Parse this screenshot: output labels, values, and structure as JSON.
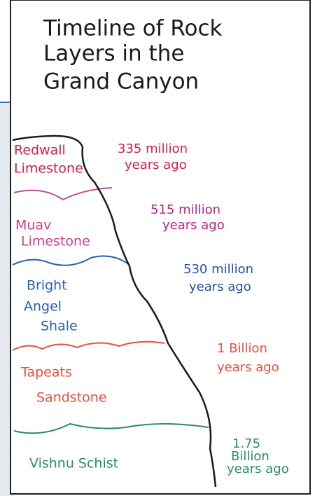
{
  "title_lines": [
    "Timeline of Rock",
    "Layers in the",
    "Grand Canyon"
  ],
  "layers": [
    {
      "name_lines": [
        "Redwall",
        "Limestone"
      ],
      "age_lines": [
        "335 million",
        "years ago"
      ]
    },
    {
      "name_lines": [
        "Muav",
        "Limestone"
      ],
      "age_lines": [
        "515 million",
        "years ago"
      ]
    },
    {
      "name_lines": [
        "Bright",
        "Angel",
        "Shale"
      ],
      "age_lines": [
        "530 million",
        "years ago"
      ]
    },
    {
      "name_lines": [
        "Tapeats",
        "Sandstone"
      ],
      "age_lines": [
        "1 Billion",
        "years ago"
      ]
    },
    {
      "name_lines": [
        "Vishnu Schist"
      ],
      "age_lines": [
        "1.75",
        "Billion",
        "years ago"
      ]
    }
  ]
}
